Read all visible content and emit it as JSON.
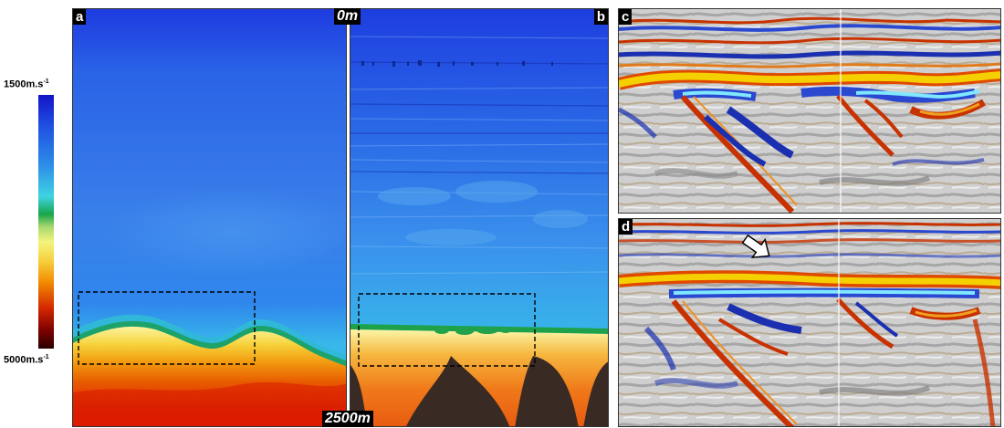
{
  "colorbar": {
    "top_label": "1500m.s",
    "top_exponent": "-1",
    "bottom_label": "5000m.s",
    "bottom_exponent": "-1",
    "colors": [
      "#1a1ad8",
      "#2d7fe8",
      "#38c8e0",
      "#1aa04a",
      "#f4f27a",
      "#f2a000",
      "#d92000",
      "#3a0000"
    ]
  },
  "panels": {
    "a": {
      "label": "a"
    },
    "b": {
      "label": "b"
    },
    "c": {
      "label": "c"
    },
    "d": {
      "label": "d"
    }
  },
  "depth": {
    "top": "0m",
    "bottom": "2500m"
  },
  "colors": {
    "water": "#2a63e6",
    "seismic_positive": "#e8c000",
    "seismic_negative": "#2a48d0"
  }
}
